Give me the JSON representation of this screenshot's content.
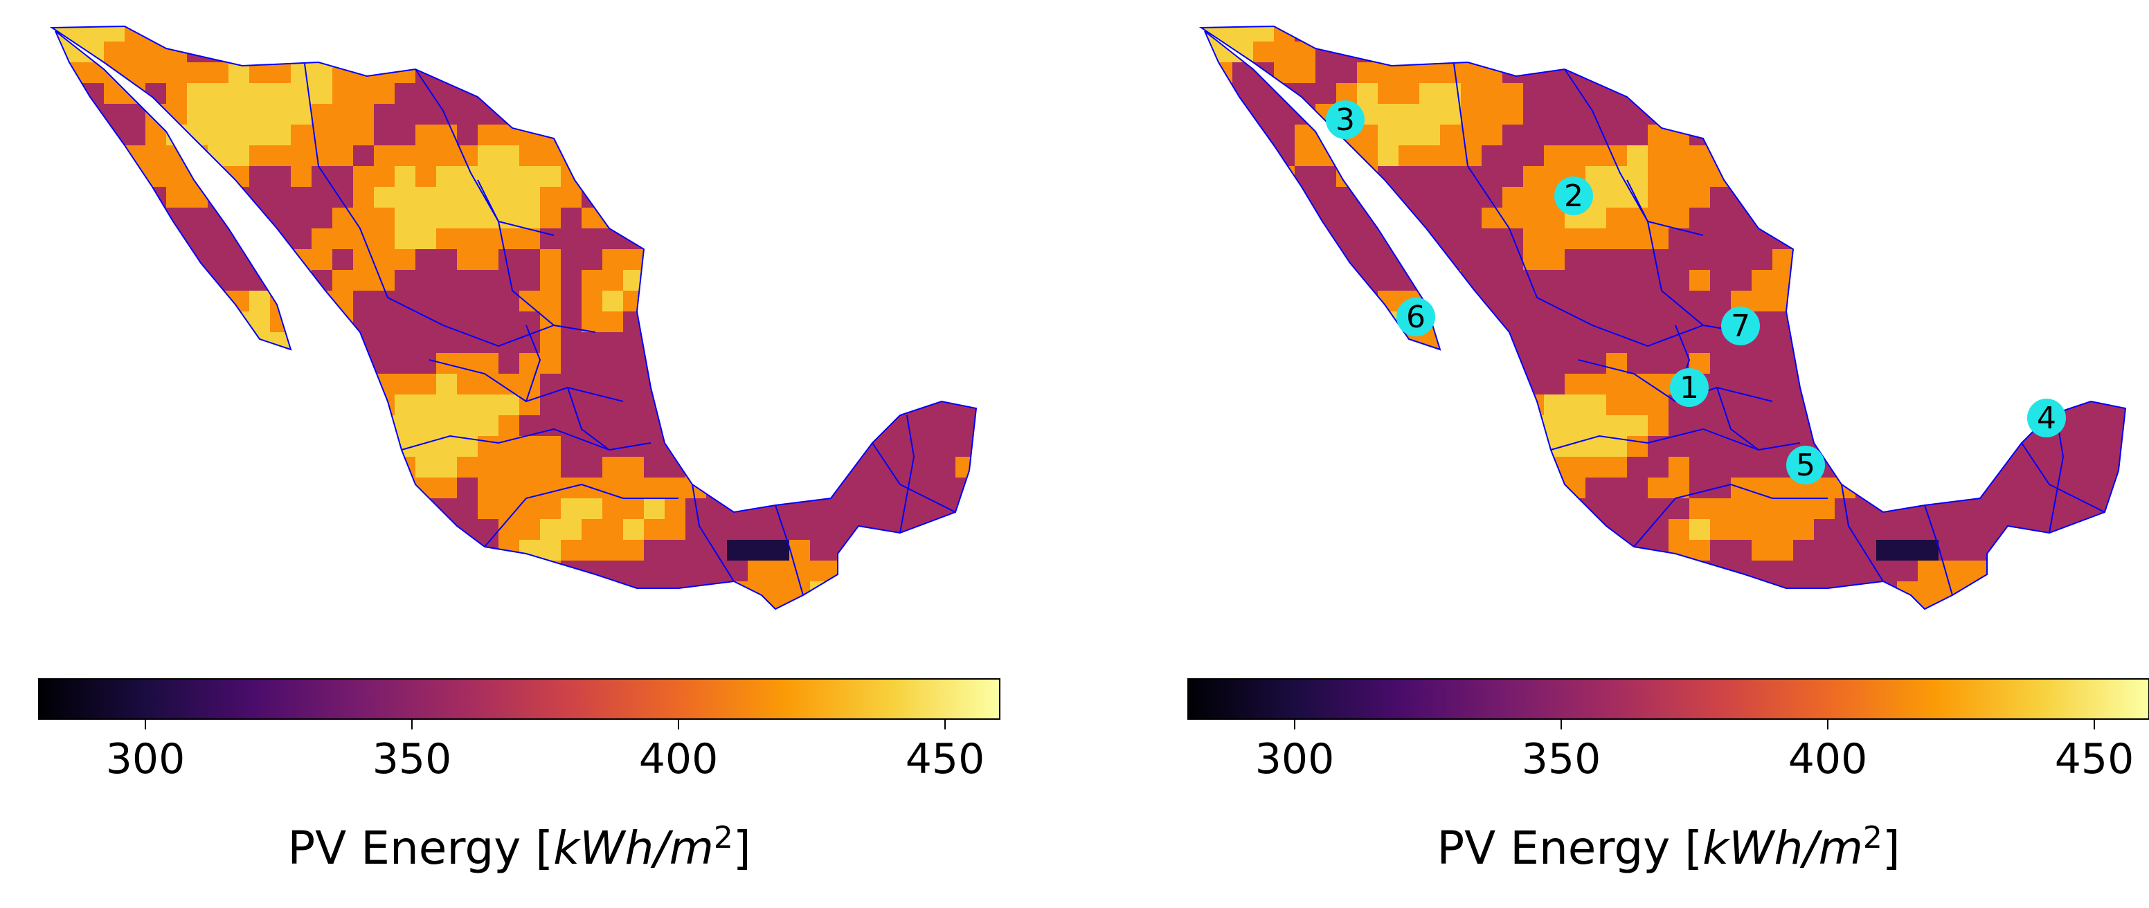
{
  "figure": {
    "panels": [
      {
        "id": "left",
        "colorbar": {
          "label_prefix": "PV Energy [",
          "label_unit_main": "kWh/m",
          "label_unit_exp": "2",
          "label_suffix": "]",
          "ticks": [
            "300",
            "350",
            "400",
            "450"
          ],
          "range": [
            280,
            460
          ],
          "colormap": "inferno"
        }
      },
      {
        "id": "right",
        "colorbar": {
          "label_prefix": "PV Energy [",
          "label_unit_main": "kWh/m",
          "label_unit_exp": "2",
          "label_suffix": "]",
          "ticks": [
            "300",
            "350",
            "400",
            "450"
          ],
          "range": [
            280,
            460
          ],
          "colormap": "inferno"
        },
        "markers": [
          "1",
          "2",
          "3",
          "4",
          "5",
          "6",
          "7"
        ]
      }
    ],
    "colors": {
      "border": "#0000ff",
      "marker_fill": "#22e5e8",
      "land_high": "#f7d13d",
      "land_mid": "#f98c0a",
      "land_low": "#a52c60",
      "land_min": "#1b0c41"
    }
  }
}
